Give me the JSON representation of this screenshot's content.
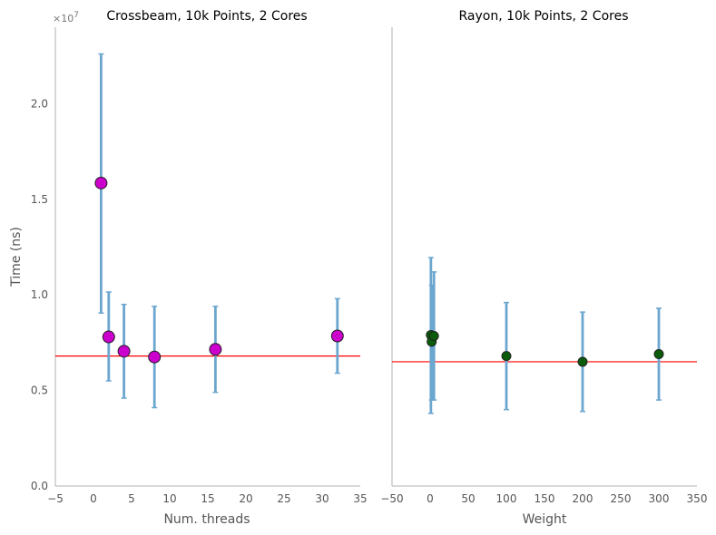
{
  "chart_data": [
    {
      "type": "scatter",
      "title": "Crossbeam, 10k Points, 2 Cores",
      "xlabel": "Num. threads",
      "ylabel": "Time (ns)",
      "xlim": [
        -5,
        35
      ],
      "ylim": [
        0,
        24000000
      ],
      "x_ticks": [
        -5,
        0,
        5,
        10,
        15,
        20,
        25,
        30,
        35
      ],
      "x_tick_labels": [
        "−5",
        "0",
        "5",
        "10",
        "15",
        "20",
        "25",
        "30",
        "35"
      ],
      "y_ticks": [
        0,
        5000000,
        10000000,
        15000000,
        20000000
      ],
      "y_tick_labels": [
        "0.0",
        "0.5",
        "1.0",
        "1.5",
        "2.0"
      ],
      "y_offset_text": "×10",
      "y_offset_exponent": "7",
      "grid": false,
      "marker_color": "#cc00cc",
      "errorbar_color": "#6ba6cf",
      "reference_line": {
        "y": 6800000,
        "color": "#ff0000"
      },
      "points": [
        {
          "x": 1,
          "y": 15850000,
          "err_low": 9050000,
          "err_high": 22600000
        },
        {
          "x": 2,
          "y": 7800000,
          "err_low": 5500000,
          "err_high": 10150000
        },
        {
          "x": 4,
          "y": 7050000,
          "err_low": 4600000,
          "err_high": 9500000
        },
        {
          "x": 8,
          "y": 6750000,
          "err_low": 4100000,
          "err_high": 9400000
        },
        {
          "x": 16,
          "y": 7150000,
          "err_low": 4900000,
          "err_high": 9400000
        },
        {
          "x": 32,
          "y": 7850000,
          "err_low": 5900000,
          "err_high": 9800000
        }
      ]
    },
    {
      "type": "scatter",
      "title": "Rayon, 10k Points, 2 Cores",
      "xlabel": "Weight",
      "ylabel": "",
      "xlim": [
        -50,
        350
      ],
      "ylim": [
        0,
        24000000
      ],
      "x_ticks": [
        -50,
        0,
        50,
        100,
        150,
        200,
        250,
        300,
        350
      ],
      "x_tick_labels": [
        "−50",
        "0",
        "50",
        "100",
        "150",
        "200",
        "250",
        "300",
        "350"
      ],
      "shared_y": true,
      "grid": false,
      "marker_color": "#0a5c0a",
      "errorbar_color": "#6ba6cf",
      "reference_line": {
        "y": 6500000,
        "color": "#ff0000"
      },
      "points": [
        {
          "x": 1,
          "y": 7900000,
          "err_low": 3800000,
          "err_high": 11950000
        },
        {
          "x": 2,
          "y": 7550000,
          "err_low": 4500000,
          "err_high": 10500000
        },
        {
          "x": 5,
          "y": 7850000,
          "err_low": 4500000,
          "err_high": 11200000
        },
        {
          "x": 100,
          "y": 6800000,
          "err_low": 4000000,
          "err_high": 9600000
        },
        {
          "x": 200,
          "y": 6500000,
          "err_low": 3900000,
          "err_high": 9100000
        },
        {
          "x": 300,
          "y": 6900000,
          "err_low": 4500000,
          "err_high": 9300000
        }
      ]
    }
  ]
}
